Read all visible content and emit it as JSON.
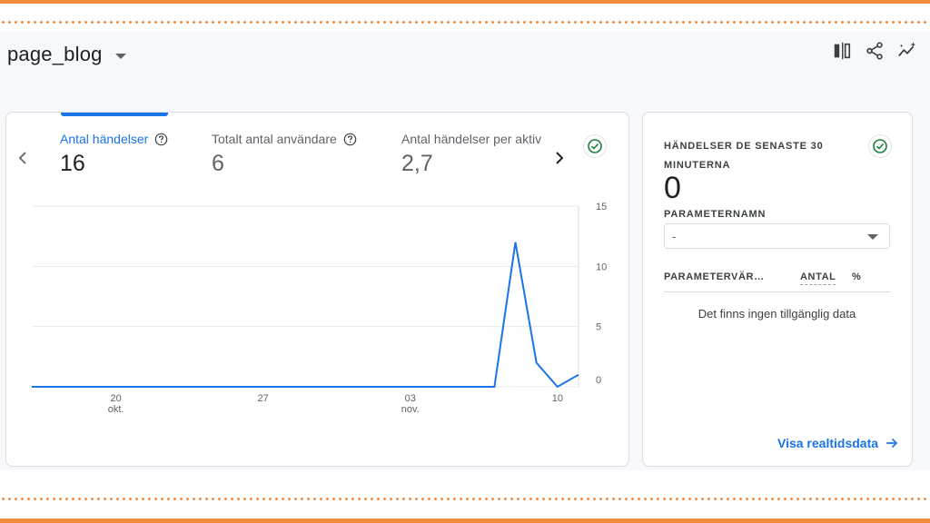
{
  "page": {
    "title": "page_blog"
  },
  "toolbar": {
    "icons": [
      "compare-columns-icon",
      "share-icon",
      "insights-icon"
    ]
  },
  "metrics": [
    {
      "label": "Antal händelser",
      "value": "16",
      "active": true,
      "has_help": true
    },
    {
      "label": "Totalt antal användare",
      "value": "6",
      "active": false,
      "has_help": true
    },
    {
      "label": "Antal händelser per aktiv",
      "value": "2,7",
      "active": false,
      "has_help": false
    }
  ],
  "chart_data": {
    "type": "line",
    "x": [
      "2024-10-16",
      "2024-10-17",
      "2024-10-18",
      "2024-10-19",
      "2024-10-20",
      "2024-10-21",
      "2024-10-22",
      "2024-10-23",
      "2024-10-24",
      "2024-10-25",
      "2024-10-26",
      "2024-10-27",
      "2024-10-28",
      "2024-10-29",
      "2024-10-30",
      "2024-10-31",
      "2024-11-01",
      "2024-11-02",
      "2024-11-03",
      "2024-11-04",
      "2024-11-05",
      "2024-11-06",
      "2024-11-07",
      "2024-11-08",
      "2024-11-09",
      "2024-11-10",
      "2024-11-11"
    ],
    "series": [
      {
        "values": [
          0,
          0,
          0,
          0,
          0,
          0,
          0,
          0,
          0,
          0,
          0,
          0,
          0,
          0,
          0,
          0,
          0,
          0,
          0,
          0,
          0,
          0,
          0,
          12,
          2,
          0,
          1
        ],
        "color": "#1a73e8"
      }
    ],
    "x_ticks": [
      {
        "date": "2024-10-20",
        "label": "20",
        "sublabel": "okt."
      },
      {
        "date": "2024-10-27",
        "label": "27",
        "sublabel": ""
      },
      {
        "date": "2024-11-03",
        "label": "03",
        "sublabel": "nov."
      },
      {
        "date": "2024-11-10",
        "label": "10",
        "sublabel": ""
      }
    ],
    "y_ticks": [
      "0",
      "5",
      "10",
      "15"
    ],
    "ylim": [
      0,
      15
    ],
    "grid": true,
    "y_axis_side": "right",
    "title": "",
    "xlabel": "",
    "ylabel": ""
  },
  "realtime": {
    "title": "HÄNDELSER DE SENASTE 30 MINUTERNA",
    "value": "0",
    "param_label": "PARAMETERNAMN",
    "param_value": "-",
    "columns": {
      "param": "PARAMETERVÄR…",
      "count": "ANTAL",
      "pct": "%"
    },
    "empty_message": "Det finns ingen tillgänglig data",
    "link_label": "Visa realtidsdata"
  },
  "colors": {
    "accent": "#1a73e8",
    "success": "#188038",
    "frame": "#f28b3d"
  }
}
